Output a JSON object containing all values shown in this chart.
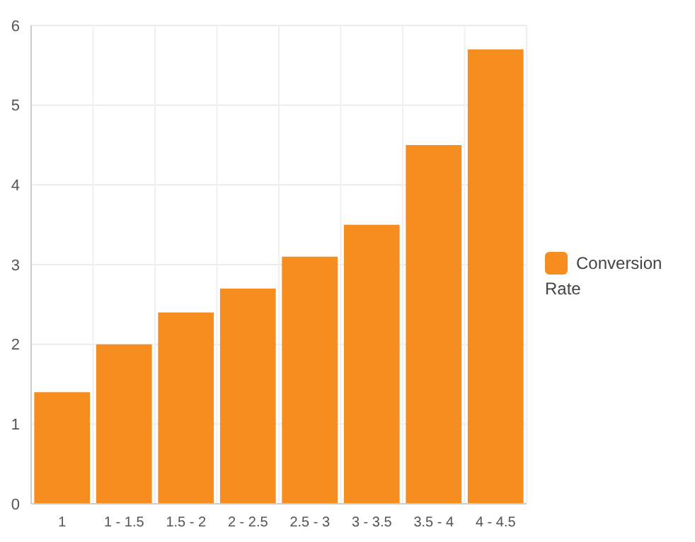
{
  "chart_data": {
    "type": "bar",
    "categories": [
      "1",
      "1 - 1.5",
      "1.5 - 2",
      "2 - 2.5",
      "2.5 - 3",
      "3 - 3.5",
      "3.5 - 4",
      "4 - 4.5"
    ],
    "series": [
      {
        "name": "Conversion Rate",
        "color": "#f68d1f",
        "values": [
          1.4,
          2.0,
          2.4,
          2.7,
          3.1,
          3.5,
          4.5,
          5.7
        ]
      }
    ],
    "ylim": [
      0,
      6
    ],
    "yticks": [
      0,
      1,
      2,
      3,
      4,
      5,
      6
    ],
    "grid": true,
    "legend": "right"
  }
}
